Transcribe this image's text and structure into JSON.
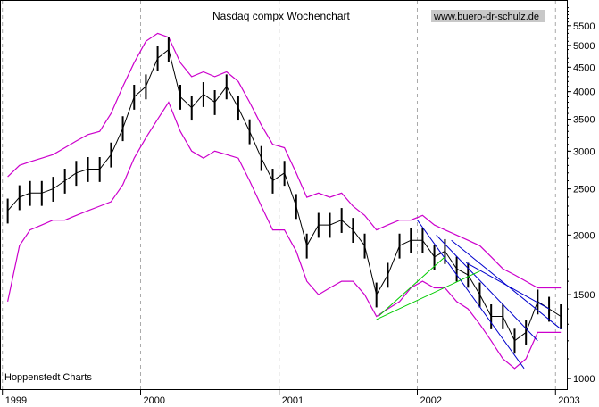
{
  "chart_data": {
    "type": "line",
    "title": "Nasdaq compx Wochenchart",
    "source_label": "www.buero-dr-schulz.de",
    "credit": "Hoppenstedt Charts",
    "y_scale": "log",
    "ylim": [
      950,
      6200
    ],
    "xlim": [
      "1998-12-28",
      "2003-01-31"
    ],
    "y_ticks": [
      1000,
      1500,
      2000,
      2500,
      3000,
      3500,
      4000,
      4500,
      5000,
      5500
    ],
    "x_ticks": [
      {
        "label": "1999",
        "date": "1999-01-01"
      },
      {
        "label": "2000",
        "date": "2000-01-01"
      },
      {
        "label": "2001",
        "date": "2001-01-01"
      },
      {
        "label": "2002",
        "date": "2002-01-01"
      },
      {
        "label": "2003",
        "date": "2003-01-01"
      }
    ],
    "grid": "vertical-dashed",
    "colors": {
      "price": "#000000",
      "bands": "#cc00cc",
      "trend_blue": "#0000cc",
      "trend_green": "#00cc00"
    },
    "x": [
      "1999-01",
      "1999-02",
      "1999-03",
      "1999-04",
      "1999-05",
      "1999-06",
      "1999-07",
      "1999-08",
      "1999-09",
      "1999-10",
      "1999-11",
      "1999-12",
      "2000-01",
      "2000-02",
      "2000-03",
      "2000-04",
      "2000-05",
      "2000-06",
      "2000-07",
      "2000-08",
      "2000-09",
      "2000-10",
      "2000-11",
      "2000-12",
      "2001-01",
      "2001-02",
      "2001-03",
      "2001-04",
      "2001-05",
      "2001-06",
      "2001-07",
      "2001-08",
      "2001-09",
      "2001-10",
      "2001-11",
      "2001-12",
      "2002-01",
      "2002-02",
      "2002-03",
      "2002-04",
      "2002-05",
      "2002-06",
      "2002-07",
      "2002-08",
      "2002-09",
      "2002-10",
      "2002-11",
      "2002-12",
      "2003-01"
    ],
    "series": [
      {
        "values": [
          2250,
          2400,
          2450,
          2450,
          2500,
          2600,
          2700,
          2750,
          2750,
          2950,
          3350,
          3900,
          4100,
          4700,
          4900,
          3900,
          3700,
          3950,
          3800,
          4100,
          3700,
          3300,
          2900,
          2600,
          2700,
          2300,
          1900,
          2100,
          2100,
          2150,
          2050,
          1900,
          1500,
          1650,
          1900,
          1950,
          1950,
          1800,
          1850,
          1700,
          1650,
          1500,
          1350,
          1350,
          1200,
          1250,
          1450,
          1400,
          1350
        ]
      },
      {
        "values": [
          2650,
          2800,
          2850,
          2900,
          2950,
          3050,
          3150,
          3250,
          3300,
          3600,
          4100,
          4600,
          5100,
          5300,
          5200,
          4600,
          4300,
          4400,
          4300,
          4400,
          4200,
          3800,
          3400,
          3100,
          3050,
          2700,
          2400,
          2450,
          2400,
          2450,
          2300,
          2200,
          2050,
          2100,
          2150,
          2150,
          2200,
          2100,
          2050,
          2000,
          1950,
          1900,
          1800,
          1700,
          1650,
          1600,
          1550,
          1550,
          1550
        ]
      },
      {
        "values": [
          1450,
          1900,
          2050,
          2100,
          2150,
          2150,
          2200,
          2250,
          2300,
          2350,
          2550,
          2900,
          3200,
          3500,
          3800,
          3300,
          3000,
          2900,
          3000,
          2950,
          2900,
          2600,
          2300,
          2050,
          2050,
          1850,
          1600,
          1500,
          1550,
          1600,
          1600,
          1500,
          1350,
          1400,
          1450,
          1550,
          1600,
          1550,
          1550,
          1450,
          1400,
          1300,
          1200,
          1100,
          1050,
          1100,
          1250,
          1250,
          1250
        ]
      }
    ],
    "trendlines": [
      {
        "color": "blue",
        "from": [
          "2002-01-01",
          2150
        ],
        "to": [
          "2002-10-10",
          1050
        ]
      },
      {
        "color": "blue",
        "from": [
          "2002-02-20",
          2000
        ],
        "to": [
          "2002-11-15",
          1200
        ]
      },
      {
        "color": "blue",
        "from": [
          "2002-04-01",
          1950
        ],
        "to": [
          "2003-01-15",
          1270
        ]
      },
      {
        "color": "blue",
        "from": [
          "2002-05-10",
          1750
        ],
        "to": [
          "2002-12-15",
          1400
        ]
      },
      {
        "color": "green",
        "from": [
          "2001-09-15",
          1330
        ],
        "to": [
          "2002-06-15",
          1680
        ]
      },
      {
        "color": "green",
        "from": [
          "2001-09-20",
          1350
        ],
        "to": [
          "2002-03-15",
          1800
        ]
      }
    ]
  }
}
